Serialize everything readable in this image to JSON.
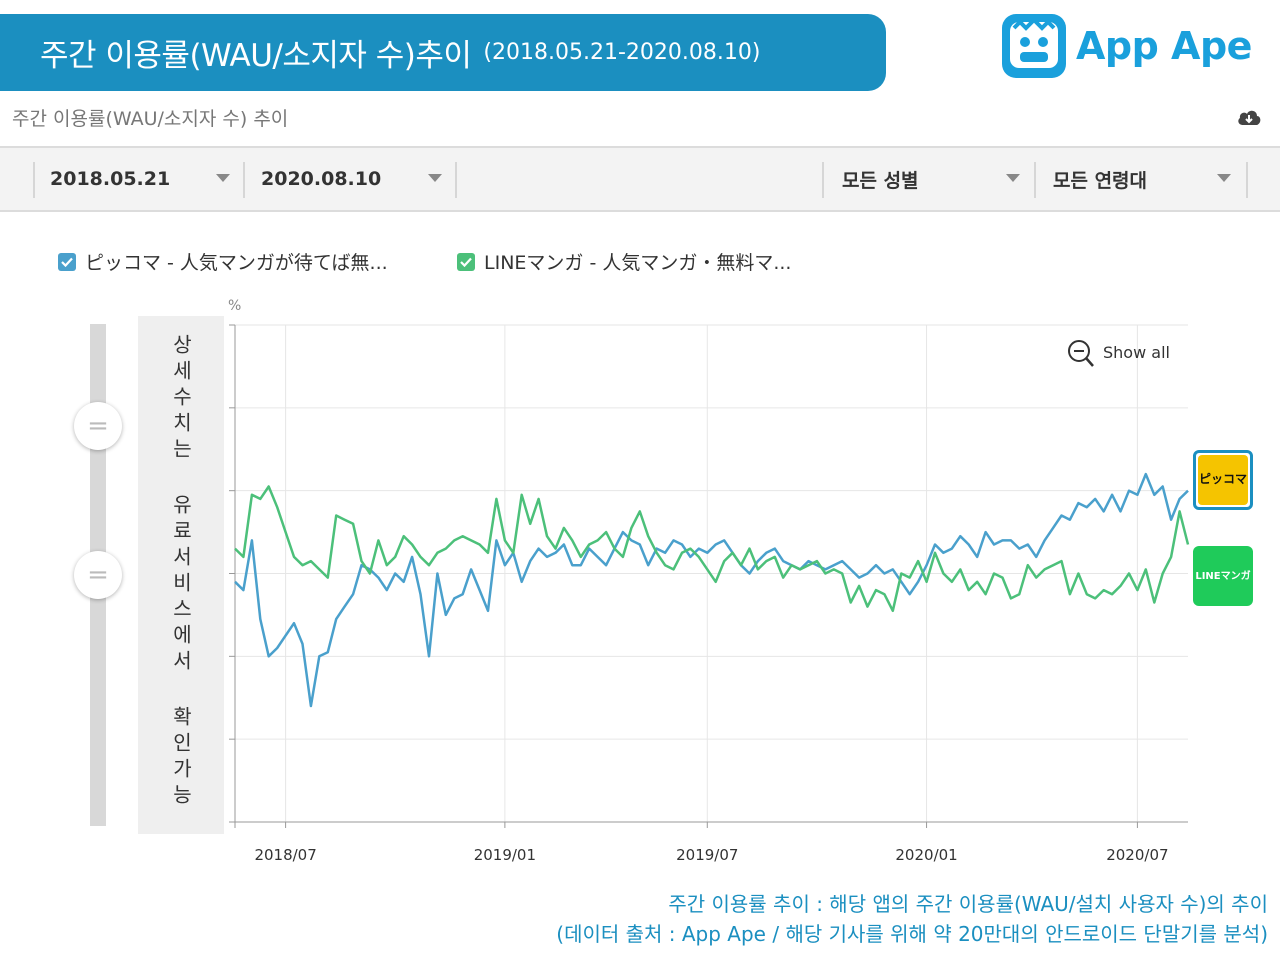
{
  "header": {
    "title": "주간 이용률(WAU/소지자 수)추이",
    "range": "(2018.05.21-2020.08.10)",
    "logo_text": "App Ape"
  },
  "subtitle": "주간 이용률(WAU/소지자 수) 추이",
  "filters": {
    "start_date": "2018.05.21",
    "end_date": "2020.08.10",
    "gender": "모든 성별",
    "age": "모든 연령대"
  },
  "detail_notice": "상세수치는 유료서비스에서 확인가능",
  "app_icons": {
    "piccoma_label": "ピッコマ",
    "line_label": "LINEマンガ"
  },
  "footnote": {
    "line1": "주간 이용률 추이 : 해당 앱의 주간 이용률(WAU/설치 사용자 수)의 추이",
    "line2": "(데이터 출처 : App Ape / 해당 기사를 위해 약 20만대의 안드로이드 단말기를 분석)"
  },
  "colors": {
    "banner": "#1b8fc0",
    "piccoma": "#4aa0cc",
    "line_manga": "#4cc07a",
    "logo": "#1aa0dc"
  },
  "chart_data": {
    "type": "line",
    "title": "주간 이용률(WAU/소지자 수) 추이",
    "ylabel": "%",
    "xlabel": "",
    "ylim": [
      0,
      60
    ],
    "grid": true,
    "legend_position": "top-left",
    "show_all_label": "Show all",
    "x_ticks": [
      "2018/07",
      "2019/01",
      "2019/07",
      "2020/01",
      "2020/07"
    ],
    "x_tick_weeks": [
      6,
      32,
      56,
      82,
      107
    ],
    "series": [
      {
        "name": "ピッコマ - 人気マンガが待てば無...",
        "color": "#4aa0cc",
        "values": [
          29.0,
          28.0,
          34.0,
          24.5,
          20.0,
          21.0,
          22.5,
          24.0,
          21.5,
          14.0,
          20.0,
          20.5,
          24.5,
          26.0,
          27.5,
          31.0,
          30.5,
          29.5,
          28.0,
          30.0,
          29.0,
          32.0,
          27.5,
          20.0,
          30.0,
          25.0,
          27.0,
          27.5,
          30.5,
          28.0,
          25.5,
          34.0,
          31.0,
          32.5,
          29.0,
          31.5,
          33.0,
          32.0,
          32.5,
          33.5,
          31.0,
          31.0,
          33.0,
          32.0,
          31.0,
          33.0,
          35.0,
          34.0,
          33.5,
          31.0,
          33.0,
          32.5,
          34.0,
          33.5,
          32.0,
          33.0,
          32.5,
          33.5,
          34.0,
          32.5,
          31.0,
          30.0,
          31.5,
          32.5,
          33.0,
          31.5,
          31.0,
          30.5,
          31.5,
          31.0,
          30.5,
          31.0,
          31.5,
          30.5,
          29.5,
          30.0,
          31.0,
          30.0,
          30.5,
          29.0,
          27.5,
          29.0,
          31.0,
          33.5,
          32.5,
          33.0,
          34.5,
          33.5,
          32.0,
          35.0,
          33.5,
          34.0,
          34.0,
          33.0,
          33.5,
          32.0,
          34.0,
          35.5,
          37.0,
          36.5,
          38.5,
          38.0,
          39.0,
          37.5,
          39.5,
          37.5,
          40.0,
          39.5,
          42.0,
          39.5,
          40.5,
          36.5,
          39.0,
          40.0
        ]
      },
      {
        "name": "LINEマンガ - 人気マンガ・無料マ...",
        "color": "#4cc07a",
        "values": [
          33.0,
          32.0,
          39.5,
          39.0,
          40.5,
          38.0,
          35.0,
          32.0,
          31.0,
          31.5,
          30.5,
          29.5,
          37.0,
          36.5,
          36.0,
          31.5,
          30.0,
          34.0,
          31.0,
          32.0,
          34.5,
          33.5,
          32.0,
          31.0,
          32.5,
          33.0,
          34.0,
          34.5,
          34.0,
          33.5,
          32.5,
          39.0,
          34.0,
          32.5,
          39.5,
          36.0,
          39.0,
          34.5,
          33.0,
          35.5,
          34.0,
          32.0,
          33.5,
          34.0,
          35.0,
          33.0,
          32.0,
          35.5,
          37.5,
          34.5,
          32.5,
          31.0,
          30.5,
          32.5,
          33.0,
          32.0,
          30.5,
          29.0,
          31.5,
          32.5,
          31.0,
          33.0,
          30.5,
          31.5,
          32.0,
          29.5,
          31.0,
          30.5,
          31.0,
          31.5,
          30.0,
          30.5,
          30.0,
          26.5,
          28.5,
          26.0,
          28.0,
          27.5,
          25.5,
          30.0,
          29.5,
          31.5,
          29.0,
          32.5,
          30.0,
          29.0,
          30.5,
          28.0,
          29.0,
          27.5,
          30.0,
          29.5,
          27.0,
          27.5,
          31.0,
          29.5,
          30.5,
          31.0,
          31.5,
          27.5,
          30.0,
          27.5,
          27.0,
          28.0,
          27.5,
          28.5,
          30.0,
          28.0,
          30.5,
          26.5,
          30.0,
          32.0,
          37.5,
          33.5
        ]
      }
    ]
  }
}
